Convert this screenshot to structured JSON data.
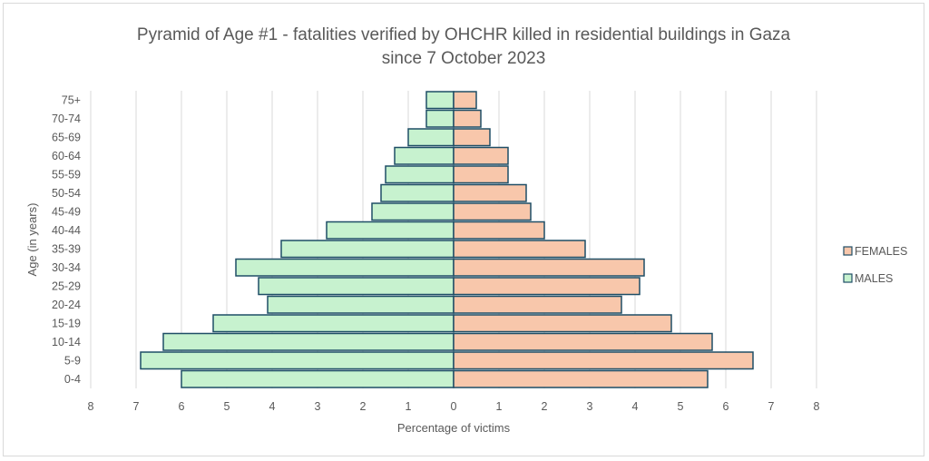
{
  "chart_data": {
    "type": "bar",
    "orientation": "horizontal",
    "title_line1": "Pyramid of Age #1 - fatalities verified by OHCHR killed in residential buildings in Gaza",
    "title_line2": "since 7 October 2023",
    "xlabel": "Percentage of victims",
    "ylabel": "Age (in years)",
    "categories": [
      "0-4",
      "5-9",
      "10-14",
      "15-19",
      "20-24",
      "25-29",
      "30-34",
      "35-39",
      "40-44",
      "45-49",
      "50-54",
      "55-59",
      "60-64",
      "65-69",
      "70-74",
      "75+"
    ],
    "series": [
      {
        "name": "FEMALES",
        "color": "#f8c7ab",
        "stroke": "#1f4e66",
        "values": [
          5.6,
          6.6,
          5.7,
          4.8,
          3.7,
          4.1,
          4.2,
          2.9,
          2.0,
          1.7,
          1.6,
          1.2,
          1.2,
          0.8,
          0.6,
          0.5
        ]
      },
      {
        "name": "MALES",
        "color": "#c7f2cf",
        "stroke": "#1f4e66",
        "values": [
          6.0,
          6.9,
          6.4,
          5.3,
          4.1,
          4.3,
          4.8,
          3.8,
          2.8,
          1.8,
          1.6,
          1.5,
          1.3,
          1.0,
          0.6,
          0.6
        ]
      }
    ],
    "xlim": [
      -8,
      8
    ],
    "xticks": [
      "8",
      "7",
      "6",
      "5",
      "4",
      "3",
      "2",
      "1",
      "0",
      "1",
      "2",
      "3",
      "4",
      "5",
      "6",
      "7",
      "8"
    ],
    "grid": "vertical",
    "legend_position": "right"
  }
}
